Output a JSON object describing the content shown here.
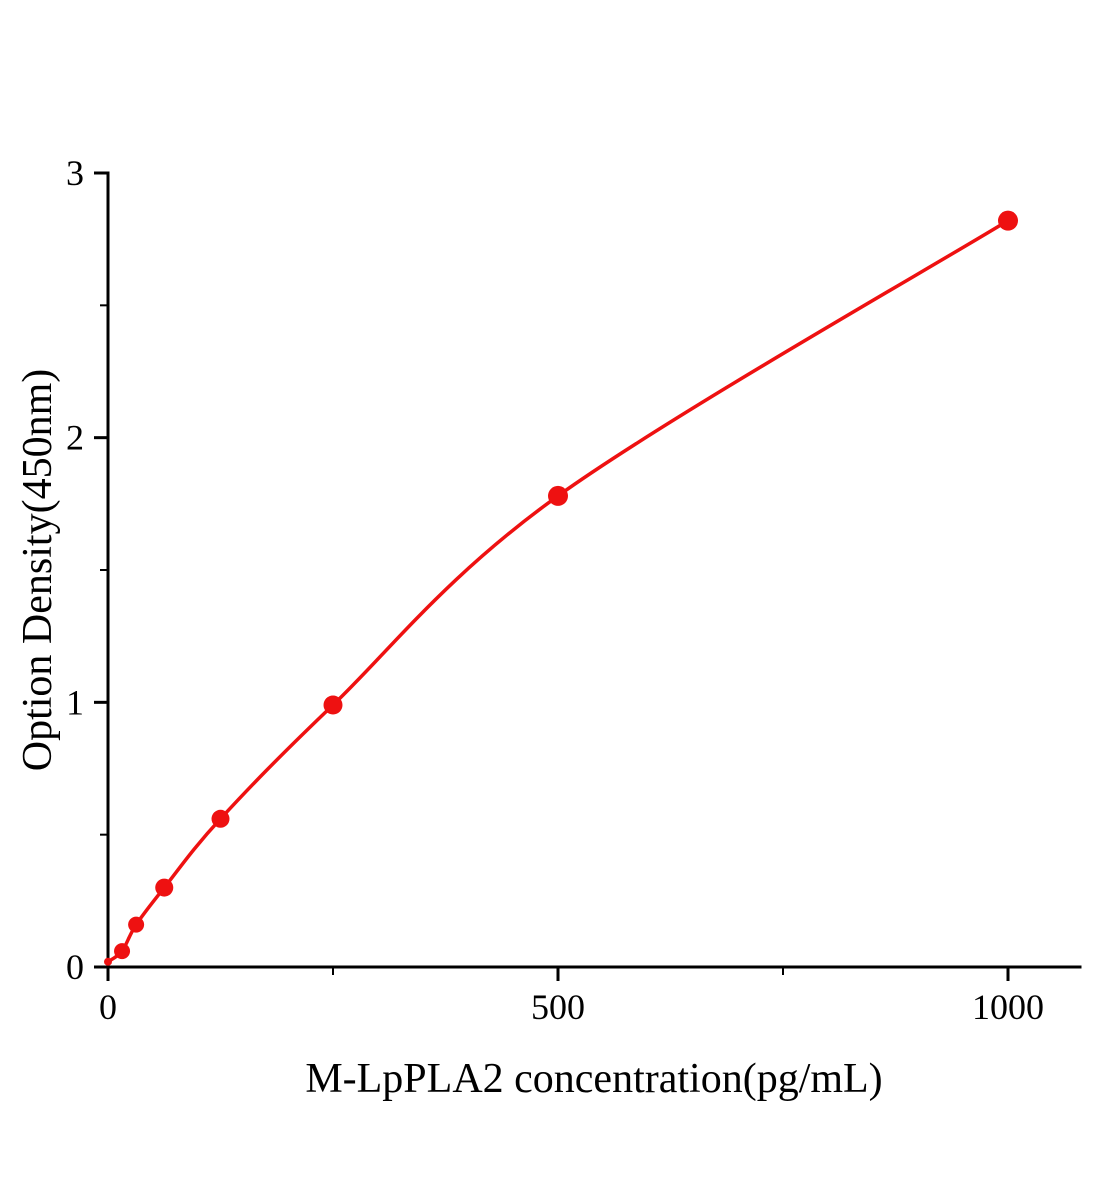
{
  "figure": {
    "background": "#ffffff"
  },
  "chart_data": {
    "type": "line",
    "title": "",
    "xlabel": "M-LpPLA2 concentration(pg/mL)",
    "ylabel": "Option Density(450nm)",
    "x": [
      0,
      15.6,
      31.25,
      62.5,
      125,
      250,
      500,
      1000
    ],
    "y": [
      0.02,
      0.06,
      0.16,
      0.3,
      0.56,
      0.99,
      1.78,
      2.82
    ],
    "xlim": [
      0,
      1080
    ],
    "ylim": [
      0,
      3
    ],
    "x_major_ticks": [
      0,
      500,
      1000
    ],
    "x_minor_ticks": [
      250,
      750
    ],
    "y_major_ticks": [
      0,
      1,
      2,
      3
    ],
    "y_minor_ticks": [
      0.5,
      1.5,
      2.5
    ],
    "x_major_tick_labels": [
      "0",
      "500",
      "1000"
    ],
    "y_major_tick_labels": [
      "0",
      "1",
      "2",
      "3"
    ],
    "grid": false,
    "legend": "none",
    "line_color": "#ee1111",
    "marker_color": "#ee1111",
    "axis_color": "#000000",
    "marker_radii": [
      4,
      8,
      8,
      9,
      9,
      9.5,
      10,
      10
    ]
  }
}
